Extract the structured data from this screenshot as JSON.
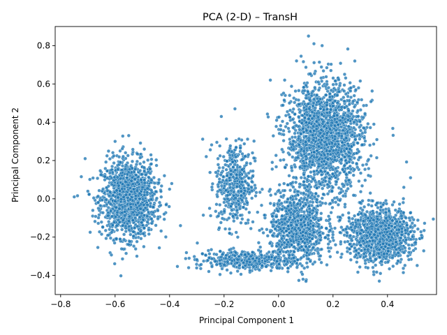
{
  "chart_data": {
    "type": "scatter",
    "title": "PCA (2-D) – TransH",
    "xlabel": "Principal Component 1",
    "ylabel": "Principal Component 2",
    "xlim": [
      -0.82,
      0.58
    ],
    "ylim": [
      -0.5,
      0.9
    ],
    "xticks": [
      -0.8,
      -0.6,
      -0.4,
      -0.2,
      0.0,
      0.2,
      0.4
    ],
    "yticks": [
      -0.4,
      -0.2,
      0.0,
      0.2,
      0.4,
      0.6,
      0.8
    ],
    "xtick_labels": [
      "−0.8",
      "−0.6",
      "−0.4",
      "−0.2",
      "0.0",
      "0.2",
      "0.4"
    ],
    "ytick_labels": [
      "−0.4",
      "−0.2",
      "0.0",
      "0.2",
      "0.4",
      "0.6",
      "0.8"
    ],
    "grid": false,
    "legend": "none",
    "point_color": "#1f77b4",
    "point_edge_color": "#ffffff",
    "clusters": [
      {
        "center": [
          -0.55,
          0.0
        ],
        "spread": [
          0.05,
          0.1
        ],
        "count": 1400
      },
      {
        "center": [
          -0.16,
          0.08
        ],
        "spread": [
          0.035,
          0.11
        ],
        "count": 450
      },
      {
        "center": [
          -0.12,
          -0.32
        ],
        "spread": [
          0.09,
          0.025
        ],
        "count": 400
      },
      {
        "center": [
          0.07,
          -0.15
        ],
        "spread": [
          0.05,
          0.09
        ],
        "count": 900
      },
      {
        "center": [
          0.17,
          0.32
        ],
        "spread": [
          0.07,
          0.14
        ],
        "count": 1800
      },
      {
        "center": [
          0.37,
          -0.19
        ],
        "spread": [
          0.06,
          0.07
        ],
        "count": 1200
      }
    ],
    "sample_points": [
      [
        -0.75,
        0.01
      ],
      [
        -0.71,
        0.21
      ],
      [
        -0.36,
        -0.14
      ],
      [
        -0.33,
        -0.36
      ],
      [
        -0.21,
        0.43
      ],
      [
        -0.16,
        0.47
      ],
      [
        0.04,
        0.5
      ],
      [
        0.11,
        0.85
      ],
      [
        0.13,
        0.81
      ],
      [
        0.16,
        0.8
      ],
      [
        0.28,
        0.72
      ],
      [
        -0.03,
        0.62
      ],
      [
        0.09,
        -0.42
      ],
      [
        0.37,
        -0.43
      ],
      [
        0.5,
        -0.14
      ],
      [
        0.46,
        0.06
      ],
      [
        0.3,
        -0.02
      ],
      [
        -0.4,
        0.05
      ],
      [
        -0.42,
        -0.08
      ],
      [
        -0.6,
        0.3
      ],
      [
        -0.55,
        0.33
      ],
      [
        -0.52,
        -0.3
      ],
      [
        -0.18,
        -0.18
      ],
      [
        0.23,
        0.05
      ]
    ]
  }
}
